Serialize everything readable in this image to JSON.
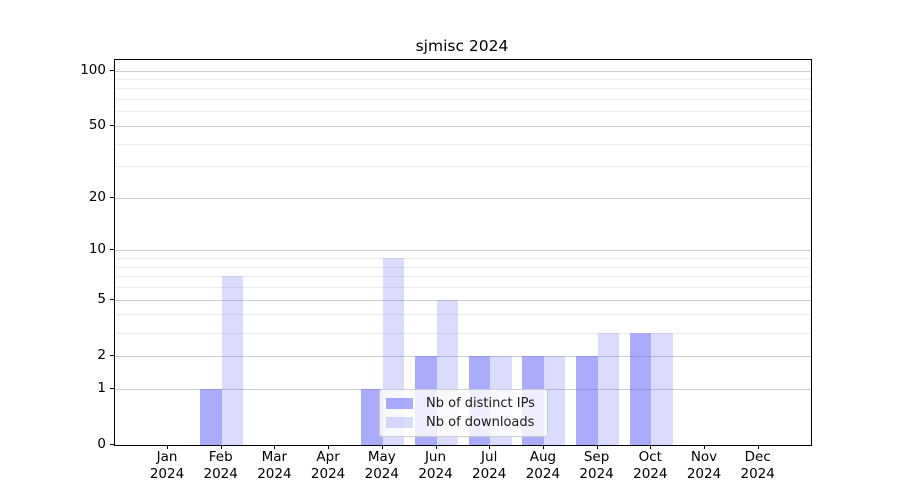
{
  "figure": {
    "title": "sjmisc 2024"
  },
  "chart_data": {
    "type": "bar",
    "title": "sjmisc 2024",
    "categories": [
      "Jan 2024",
      "Feb 2024",
      "Mar 2024",
      "Apr 2024",
      "May 2024",
      "Jun 2024",
      "Jul 2024",
      "Aug 2024",
      "Sep 2024",
      "Oct 2024",
      "Nov 2024",
      "Dec 2024"
    ],
    "series": [
      {
        "name": "Nb of distinct IPs",
        "color": "#ababf8",
        "fill": "rgba(105,105,248,0.56)",
        "values": [
          0,
          1,
          0,
          0,
          1,
          2,
          2,
          2,
          2,
          3,
          0,
          0
        ]
      },
      {
        "name": "Nb of downloads",
        "color": "#dbdbf8",
        "fill": "rgba(105,105,248,0.24)",
        "values": [
          0,
          7,
          0,
          0,
          9,
          5,
          2,
          2,
          3,
          3,
          0,
          0
        ]
      }
    ],
    "xlabel": "",
    "ylabel": "",
    "yscale": "log1p",
    "ylim": [
      0,
      114
    ],
    "yticks": [
      0,
      1,
      2,
      5,
      10,
      20,
      50,
      100
    ],
    "minor_yticks": [
      3,
      4,
      6,
      7,
      8,
      9,
      30,
      40,
      60,
      70,
      80,
      90
    ],
    "grid": true,
    "legend_position": "lower-center"
  },
  "colors": {
    "grid_major": "#cbcbcb",
    "grid_minor": "#ececec",
    "spine": "#000000",
    "background": "#ffffff"
  }
}
